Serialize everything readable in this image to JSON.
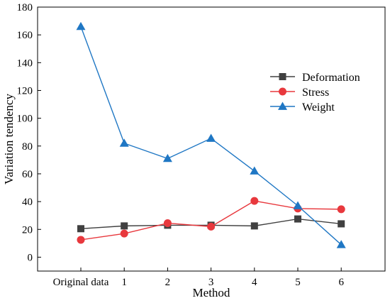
{
  "chart_data": {
    "type": "line",
    "title": "",
    "xlabel": "Method",
    "ylabel": "Variation tendency",
    "categories": [
      "Original data",
      "1",
      "2",
      "3",
      "4",
      "5",
      "6"
    ],
    "ylim": [
      -10,
      180
    ],
    "yticks": [
      0,
      20,
      40,
      60,
      80,
      100,
      120,
      140,
      160,
      180
    ],
    "grid": false,
    "legend_position": "right",
    "series": [
      {
        "name": "Deformation",
        "color": "#404040",
        "marker": "square",
        "values": [
          20.5,
          22.5,
          23.0,
          23.0,
          22.5,
          27.5,
          24.0
        ]
      },
      {
        "name": "Stress",
        "color": "#e8383d",
        "marker": "circle",
        "values": [
          12.5,
          17.0,
          24.5,
          22.0,
          40.5,
          35.0,
          34.5
        ]
      },
      {
        "name": "Weight",
        "color": "#1f77c4",
        "marker": "triangle",
        "values": [
          166.0,
          82.0,
          71.0,
          85.5,
          62.0,
          37.0,
          9.0
        ]
      }
    ]
  }
}
